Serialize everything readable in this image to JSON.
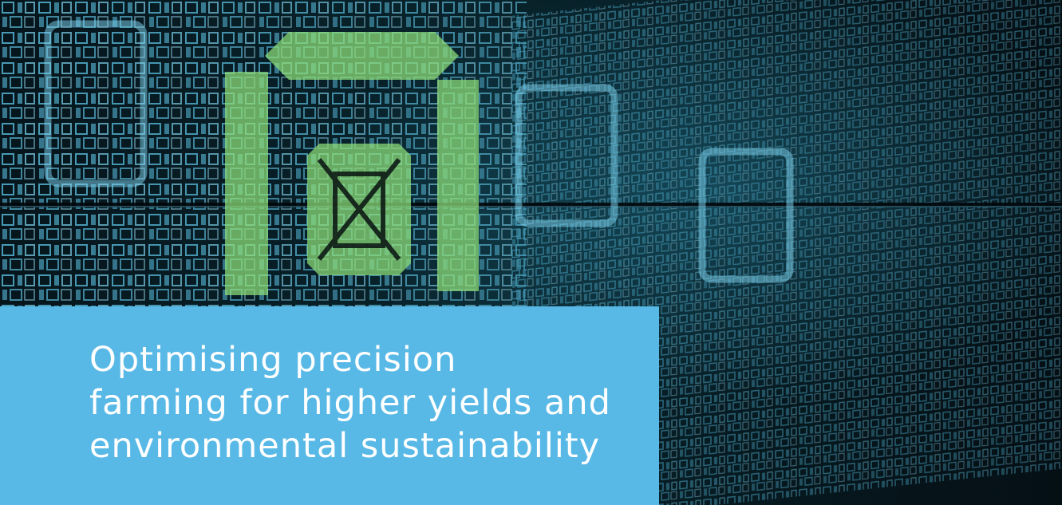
{
  "caption": {
    "title_lines": [
      "Optimising precision",
      "farming for higher yields and",
      "environmental sustainability"
    ]
  },
  "colors": {
    "caption_background": "#59b9e6",
    "caption_text": "#ffffff",
    "digital_glyph_blue": "#5fc6e8",
    "highlight_green": "#8fe07a",
    "background_dark": "#020608"
  },
  "background": {
    "description_icon": "digital-binary-wall-image"
  }
}
